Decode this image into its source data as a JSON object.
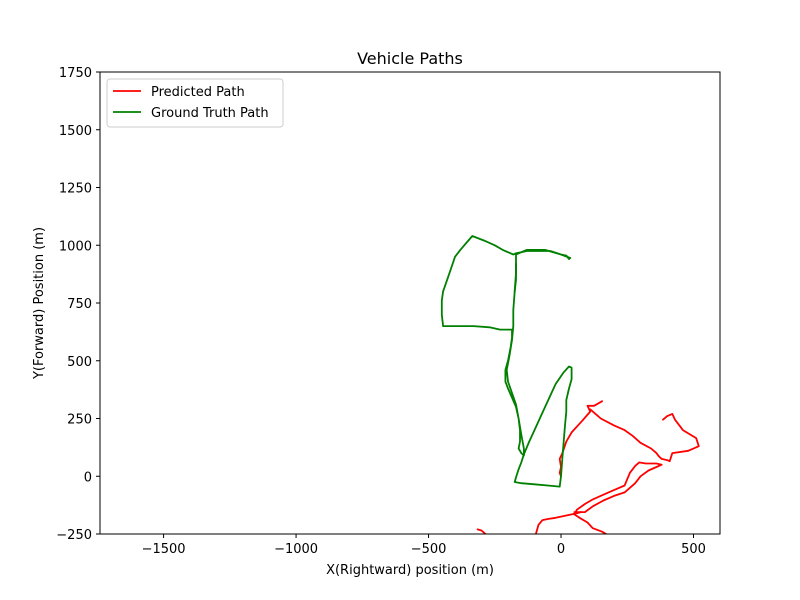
{
  "chart_data": {
    "type": "line",
    "title": "Vehicle Paths",
    "xlabel": "X(Rightward) position (m)",
    "ylabel": "Y(Forward) Position (m)",
    "xlim": [
      -1740,
      600
    ],
    "ylim": [
      -250,
      1750
    ],
    "xticks": [
      -1500,
      -1000,
      -500,
      0,
      500
    ],
    "yticks": [
      -250,
      0,
      250,
      500,
      750,
      1000,
      1250,
      1500,
      1750
    ],
    "grid": false,
    "legend_position": "upper-left",
    "series": [
      {
        "name": "Predicted Path",
        "color": "#ff0000",
        "segments": [
          [
            [
              155,
              325
            ],
            [
              125,
              305
            ],
            [
              100,
              305
            ],
            [
              110,
              280
            ],
            [
              80,
              240
            ],
            [
              40,
              190
            ],
            [
              20,
              150
            ],
            [
              5,
              100
            ],
            [
              -5,
              75
            ],
            [
              0,
              40
            ],
            [
              -5,
              15
            ],
            [
              0,
              0
            ]
          ],
          [
            [
              -95,
              -250
            ],
            [
              -85,
              -210
            ],
            [
              -70,
              -190
            ],
            [
              -50,
              -185
            ],
            [
              -20,
              -180
            ],
            [
              20,
              -170
            ],
            [
              60,
              -160
            ],
            [
              75,
              -155
            ]
          ],
          [
            [
              -315,
              -230
            ],
            [
              -300,
              -235
            ],
            [
              -285,
              -250
            ]
          ],
          [
            [
              110,
              290
            ],
            [
              150,
              250
            ],
            [
              200,
              220
            ],
            [
              240,
              200
            ],
            [
              270,
              175
            ],
            [
              300,
              145
            ],
            [
              340,
              120
            ],
            [
              360,
              100
            ],
            [
              370,
              85
            ],
            [
              380,
              75
            ],
            [
              400,
              70
            ],
            [
              410,
              65
            ],
            [
              420,
              100
            ],
            [
              480,
              110
            ],
            [
              520,
              130
            ],
            [
              510,
              165
            ],
            [
              460,
              200
            ],
            [
              430,
              245
            ],
            [
              420,
              270
            ],
            [
              400,
              260
            ],
            [
              385,
              245
            ]
          ],
          [
            [
              50,
              -155
            ],
            [
              70,
              -155
            ],
            [
              90,
              -155
            ],
            [
              120,
              -130
            ],
            [
              160,
              -105
            ],
            [
              200,
              -85
            ],
            [
              240,
              -70
            ],
            [
              280,
              -30
            ],
            [
              300,
              0
            ],
            [
              330,
              25
            ],
            [
              360,
              40
            ],
            [
              380,
              50
            ],
            [
              360,
              55
            ],
            [
              320,
              55
            ],
            [
              295,
              60
            ],
            [
              280,
              45
            ],
            [
              260,
              15
            ],
            [
              240,
              -40
            ],
            [
              200,
              -60
            ],
            [
              160,
              -80
            ],
            [
              120,
              -100
            ],
            [
              90,
              -120
            ],
            [
              60,
              -145
            ],
            [
              50,
              -165
            ],
            [
              70,
              -180
            ],
            [
              100,
              -200
            ],
            [
              120,
              -225
            ],
            [
              155,
              -240
            ],
            [
              170,
              -250
            ]
          ]
        ]
      },
      {
        "name": "Ground Truth Path",
        "color": "#008000",
        "segments": [
          [
            [
              30,
              940
            ],
            [
              20,
              955
            ],
            [
              0,
              960
            ],
            [
              -40,
              975
            ],
            [
              -90,
              975
            ],
            [
              -130,
              975
            ],
            [
              -150,
              970
            ],
            [
              -170,
              965
            ],
            [
              -180,
              960
            ],
            [
              -220,
              980
            ],
            [
              -250,
              1000
            ],
            [
              -290,
              1020
            ],
            [
              -335,
              1040
            ],
            [
              -350,
              1020
            ],
            [
              -380,
              980
            ],
            [
              -400,
              950
            ],
            [
              -415,
              900
            ],
            [
              -430,
              850
            ],
            [
              -445,
              800
            ],
            [
              -450,
              760
            ],
            [
              -450,
              700
            ],
            [
              -445,
              650
            ],
            [
              -400,
              650
            ],
            [
              -330,
              650
            ],
            [
              -270,
              645
            ],
            [
              -230,
              635
            ],
            [
              -185,
              635
            ],
            [
              -185,
              600
            ],
            [
              -190,
              560
            ],
            [
              -200,
              500
            ],
            [
              -210,
              460
            ],
            [
              -210,
              410
            ],
            [
              -200,
              380
            ],
            [
              -185,
              340
            ],
            [
              -170,
              300
            ],
            [
              -160,
              250
            ],
            [
              -155,
              200
            ],
            [
              -155,
              150
            ],
            [
              -160,
              120
            ],
            [
              -150,
              100
            ],
            [
              -140,
              90
            ],
            [
              -140,
              120
            ],
            [
              -150,
              180
            ],
            [
              -160,
              250
            ],
            [
              -170,
              310
            ],
            [
              -185,
              360
            ],
            [
              -200,
              410
            ],
            [
              -205,
              460
            ],
            [
              -195,
              520
            ],
            [
              -185,
              590
            ],
            [
              -180,
              650
            ],
            [
              -180,
              720
            ],
            [
              -175,
              800
            ],
            [
              -170,
              880
            ],
            [
              -170,
              960
            ],
            [
              -130,
              980
            ],
            [
              -60,
              980
            ],
            [
              0,
              960
            ],
            [
              35,
              945
            ]
          ],
          [
            [
              -175,
              800
            ],
            [
              -170,
              850
            ],
            [
              -170,
              920
            ]
          ],
          [
            [
              -140,
              95
            ],
            [
              -120,
              150
            ],
            [
              -100,
              200
            ],
            [
              -80,
              250
            ],
            [
              -60,
              300
            ],
            [
              -40,
              350
            ],
            [
              -20,
              400
            ],
            [
              10,
              450
            ],
            [
              30,
              475
            ],
            [
              40,
              470
            ],
            [
              40,
              420
            ],
            [
              30,
              380
            ],
            [
              20,
              330
            ],
            [
              20,
              280
            ],
            [
              15,
              220
            ],
            [
              10,
              150
            ],
            [
              5,
              80
            ],
            [
              0,
              0
            ],
            [
              -5,
              -45
            ],
            [
              -50,
              -40
            ],
            [
              -100,
              -35
            ],
            [
              -150,
              -30
            ],
            [
              -175,
              -25
            ],
            [
              -170,
              -5
            ],
            [
              -160,
              30
            ],
            [
              -150,
              60
            ],
            [
              -140,
              95
            ]
          ]
        ]
      }
    ]
  }
}
